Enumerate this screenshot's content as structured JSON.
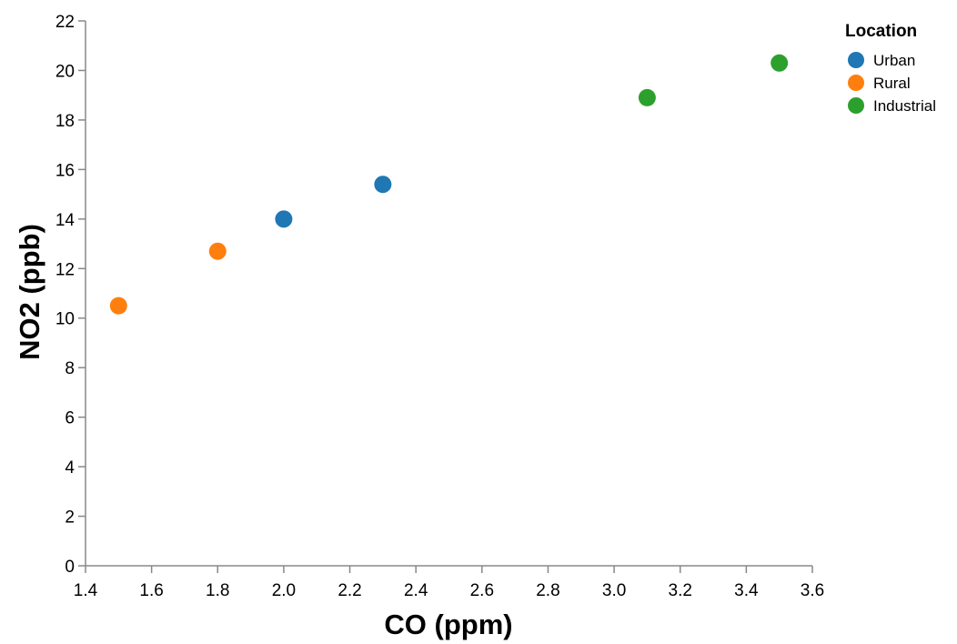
{
  "chart_data": {
    "type": "scatter",
    "xlabel": "CO (ppm)",
    "ylabel": "NO2 (ppb)",
    "xlim": [
      1.4,
      3.6
    ],
    "ylim": [
      0,
      22
    ],
    "xticks": [
      "1.4",
      "1.6",
      "1.8",
      "2.0",
      "2.2",
      "2.4",
      "2.6",
      "2.8",
      "3.0",
      "3.2",
      "3.4",
      "3.6"
    ],
    "yticks": [
      "0",
      "2",
      "4",
      "6",
      "8",
      "10",
      "12",
      "14",
      "16",
      "18",
      "20",
      "22"
    ],
    "grid": false,
    "legend": {
      "title": "Location",
      "placement": "top-right"
    },
    "series": [
      {
        "name": "Urban",
        "color": "#1f77b4",
        "points": [
          {
            "x": 2.0,
            "y": 14.0
          },
          {
            "x": 2.3,
            "y": 15.4
          }
        ]
      },
      {
        "name": "Rural",
        "color": "#ff7f0e",
        "points": [
          {
            "x": 1.5,
            "y": 10.5
          },
          {
            "x": 1.8,
            "y": 12.7
          }
        ]
      },
      {
        "name": "Industrial",
        "color": "#2ca02c",
        "points": [
          {
            "x": 3.1,
            "y": 18.9
          },
          {
            "x": 3.5,
            "y": 20.3
          }
        ]
      }
    ]
  }
}
